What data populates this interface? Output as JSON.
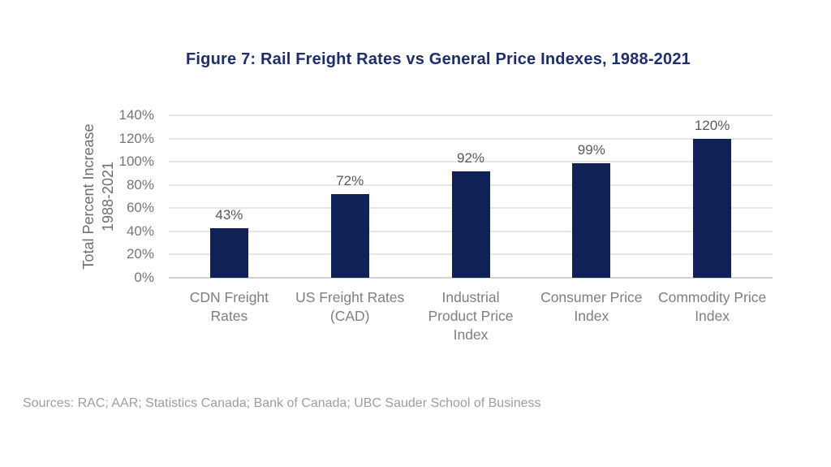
{
  "figure_title": "Figure 7: Rail Freight Rates vs General Price Indexes, 1988-2021",
  "source_note": "Sources: RAC; AAR; Statistics Canada; Bank of Canada; UBC Sauder School of Business",
  "chart_data": {
    "type": "bar",
    "title": "Figure 7: Rail Freight Rates vs General Price Indexes, 1988-2021",
    "categories": [
      "CDN Freight Rates",
      "US Freight Rates (CAD)",
      "Industrial Product Price Index",
      "Consumer Price Index",
      "Commodity Price Index"
    ],
    "category_lines": [
      [
        "CDN Freight",
        "Rates"
      ],
      [
        "US Freight Rates",
        "(CAD)"
      ],
      [
        "Industrial",
        "Product Price",
        "Index"
      ],
      [
        "Consumer Price",
        "Index"
      ],
      [
        "Commodity Price",
        "Index"
      ]
    ],
    "values": [
      43,
      72,
      92,
      99,
      120
    ],
    "data_labels": [
      "43%",
      "72%",
      "92%",
      "99%",
      "120%"
    ],
    "xlabel": "",
    "ylabel": "Total Percent Increase 1988-2021",
    "ylabel_lines": [
      "Total Percent Increase",
      "1988-2021"
    ],
    "ylim": [
      0,
      140
    ],
    "yticks": [
      0,
      20,
      40,
      60,
      80,
      100,
      120,
      140
    ],
    "ytick_labels": [
      "0%",
      "20%",
      "40%",
      "60%",
      "80%",
      "100%",
      "120%",
      "140%"
    ],
    "grid": true,
    "legend": "none"
  },
  "colors": {
    "title_text": "#1E2D6B",
    "bar_fill": "#0F2157",
    "axis_text": "#7F7F7F",
    "tick_text": "#757575",
    "data_label_text": "#595959",
    "gridline": "#E6E6E6",
    "axis_line": "#D2D2D2",
    "source_text": "#9E9E9E",
    "background": "#FFFFFF"
  }
}
